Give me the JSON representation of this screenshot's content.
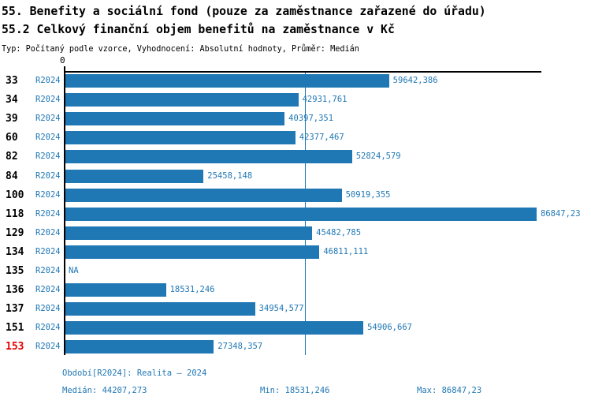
{
  "header": {
    "title_line1": "55. Benefity a sociální fond (pouze za zaměstnance zařazené do úřadu)",
    "title_line2": "55.2 Celkový finanční objem benefitů na zaměstnance v Kč",
    "subtitle": "Typ: Počítaný podle vzorce, Vyhodnocení: Absolutní hodnoty, Průměr: Medián"
  },
  "chart_data": {
    "type": "bar",
    "orientation": "horizontal",
    "title": "55.2 Celkový finanční objem benefitů na zaměstnance v Kč",
    "axis_origin_label": "0",
    "xlim": [
      0,
      87900
    ],
    "grid": false,
    "period_label": "R2024",
    "categories": [
      "33",
      "34",
      "39",
      "60",
      "82",
      "84",
      "100",
      "118",
      "129",
      "134",
      "135",
      "136",
      "137",
      "151",
      "153"
    ],
    "values": [
      59642.386,
      42931.761,
      40397.351,
      42377.467,
      52824.579,
      25458.148,
      50919.355,
      86847.23,
      45482.785,
      46811.111,
      null,
      18531.246,
      34954.577,
      54906.667,
      27348.357
    ],
    "value_labels": [
      "59642,386",
      "42931,761",
      "40397,351",
      "42377,467",
      "52824,579",
      "25458,148",
      "50919,355",
      "86847,23",
      "45482,785",
      "46811,111",
      "NA",
      "18531,246",
      "34954,577",
      "54906,667",
      "27348,357"
    ],
    "highlighted_category": "153",
    "median_value": 44207.273,
    "colors": {
      "bar": "#1f77b4",
      "value_label": "#1f77b4",
      "period_label": "#1f77b4",
      "category_label": "#000000",
      "highlighted_category_label": "#e60000",
      "median_line": "#1f77b4",
      "axis": "#000000"
    }
  },
  "footer": {
    "period_line": "Období[R2024]: Realita – 2024",
    "median": "Medián: 44207,273",
    "min": "Min: 18531,246",
    "max": "Max: 86847,23"
  }
}
